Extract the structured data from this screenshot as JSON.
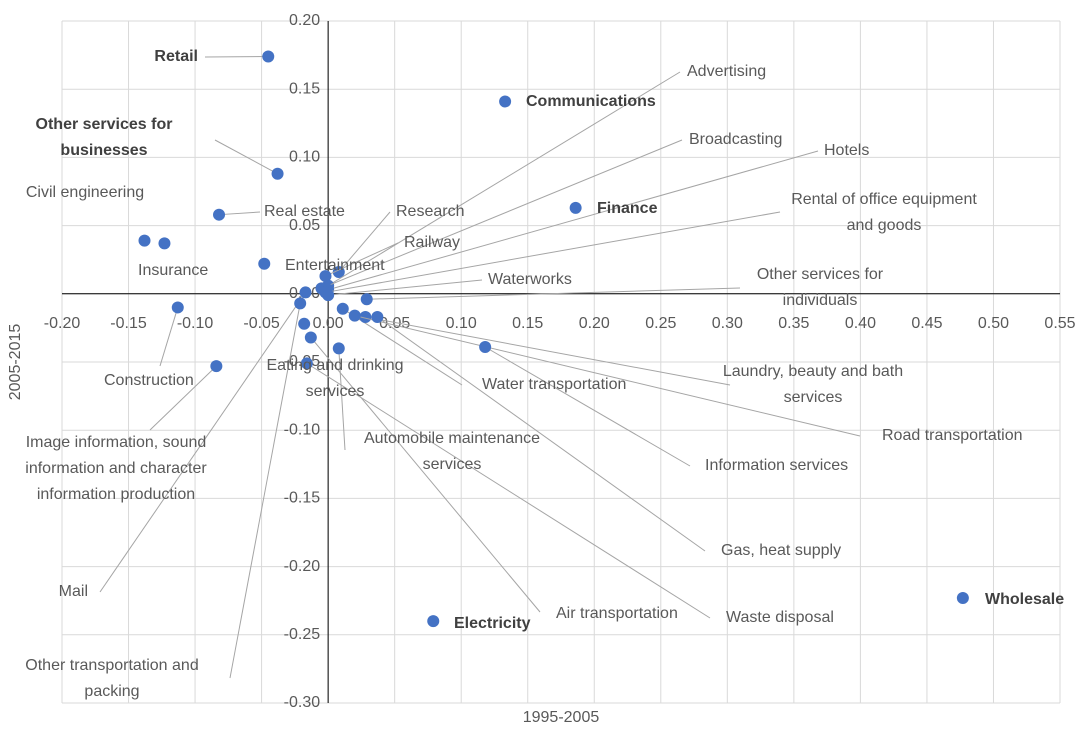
{
  "chart_data": {
    "type": "scatter",
    "x_label": "1995-2005",
    "y_label": "2005-2015",
    "color": "#4472c4",
    "grid": true,
    "point_labels": [
      "Retail",
      "Other services for businesses",
      "Communications",
      "Finance",
      "Civil engineering",
      "Insurance",
      "Real estate",
      "Entertainment",
      "Research",
      "Railway",
      "Advertising",
      "Broadcasting",
      "Hotels",
      "Rental of office equipment and goods",
      "Waterworks",
      "Other services for individuals",
      "Construction",
      "Eating and drinking services",
      "Water transportation",
      "Laundry, beauty and bath services",
      "Road transportation",
      "Automobile maintenance services",
      "Information services",
      "Image information, sound information and character information production",
      "Gas, heat supply",
      "Mail",
      "Electricity",
      "Air transportation",
      "Waste disposal",
      "Wholesale",
      "Other transportation and packing"
    ],
    "x": [
      -0.045,
      -0.038,
      0.133,
      0.186,
      -0.138,
      -0.123,
      -0.082,
      -0.048,
      0.008,
      -0.002,
      0.0,
      -0.005,
      0.0,
      -0.002,
      0.0,
      0.029,
      -0.113,
      -0.018,
      0.011,
      0.028,
      0.02,
      0.008,
      0.118,
      -0.084,
      0.037,
      -0.017,
      0.079,
      -0.013,
      -0.016,
      0.477,
      -0.021
    ],
    "values": [
      0.174,
      0.088,
      0.141,
      0.063,
      0.039,
      0.037,
      0.058,
      0.022,
      0.016,
      0.013,
      0.006,
      0.004,
      0.003,
      0.001,
      -0.001,
      -0.004,
      -0.01,
      -0.022,
      -0.011,
      -0.017,
      -0.016,
      -0.04,
      -0.039,
      -0.053,
      -0.017,
      0.001,
      -0.24,
      -0.032,
      -0.051,
      -0.223,
      -0.007
    ],
    "xlim": [
      -0.2,
      0.55
    ],
    "xticks": [
      {
        "value": -0.2,
        "label": "-0.20"
      },
      {
        "value": -0.15,
        "label": "-0.15"
      },
      {
        "value": -0.1,
        "label": "-0.10"
      },
      {
        "value": -0.05,
        "label": "-0.05"
      },
      {
        "value": 0,
        "label": "0.00"
      },
      {
        "value": 0.05,
        "label": "0.05"
      },
      {
        "value": 0.1,
        "label": "0.10"
      },
      {
        "value": 0.15,
        "label": "0.15"
      },
      {
        "value": 0.2,
        "label": "0.20"
      },
      {
        "value": 0.25,
        "label": "0.25"
      },
      {
        "value": 0.3,
        "label": "0.30"
      },
      {
        "value": 0.35,
        "label": "0.35"
      },
      {
        "value": 0.4,
        "label": "0.40"
      },
      {
        "value": 0.45,
        "label": "0.45"
      },
      {
        "value": 0.5,
        "label": "0.50"
      },
      {
        "value": 0.55,
        "label": "0.55"
      }
    ],
    "ylim": [
      -0.3,
      0.2
    ],
    "yticks": [
      {
        "value": -0.3,
        "label": "-0.30"
      },
      {
        "value": -0.25,
        "label": "-0.25"
      },
      {
        "value": -0.2,
        "label": "-0.20"
      },
      {
        "value": -0.15,
        "label": "-0.15"
      },
      {
        "value": -0.1,
        "label": "-0.10"
      },
      {
        "value": -0.05,
        "label": "-0.05"
      },
      {
        "value": 0,
        "label": "0.00"
      },
      {
        "value": 0.05,
        "label": "0.05"
      },
      {
        "value": 0.1,
        "label": "0.10"
      },
      {
        "value": 0.15,
        "label": "0.15"
      },
      {
        "value": 0.2,
        "label": "0.20"
      }
    ]
  }
}
